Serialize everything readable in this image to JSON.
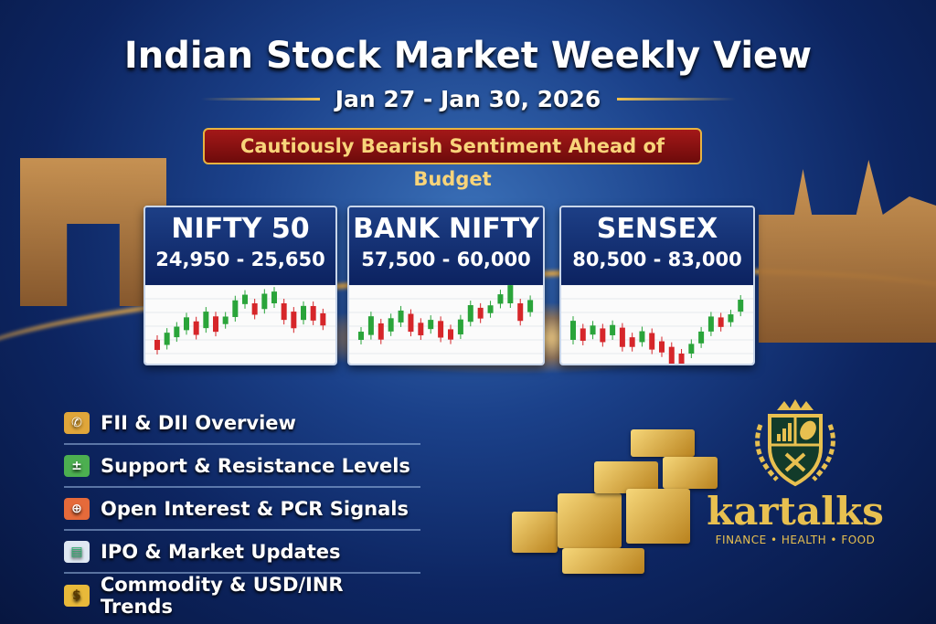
{
  "title": "Indian Stock Market Weekly View",
  "date_range": "Jan 27 - Jan 30, 2026",
  "sentiment": "Cautiously Bearish Sentiment Ahead of Budget",
  "indices": [
    {
      "name": "NIFTY 50",
      "range": "24,950 - 25,650"
    },
    {
      "name": "BANK NIFTY",
      "range": "57,500 - 60,000"
    },
    {
      "name": "SENSEX",
      "range": "80,500 - 83,000"
    }
  ],
  "topics": [
    {
      "label": "FII & DII Overview",
      "icon": "handshake-icon",
      "color": "#e0a63a"
    },
    {
      "label": "Support & Resistance Levels",
      "icon": "ledger-icon",
      "color": "#4caf50"
    },
    {
      "label": "Open Interest & PCR Signals",
      "icon": "target-icon",
      "color": "#e56a3a"
    },
    {
      "label": "IPO & Market Updates",
      "icon": "newspaper-icon",
      "color": "#dfe8f2"
    },
    {
      "label": "Commodity & USD/INR Trends",
      "icon": "money-bag-icon",
      "color": "#e8b93a"
    }
  ],
  "logo": {
    "brand": "kartalks",
    "tagline": "FINANCE • HEALTH • FOOD"
  },
  "colors": {
    "up": "#2aa43a",
    "down": "#d6262a",
    "gold": "#e8c050",
    "banner": "#8f1414"
  }
}
